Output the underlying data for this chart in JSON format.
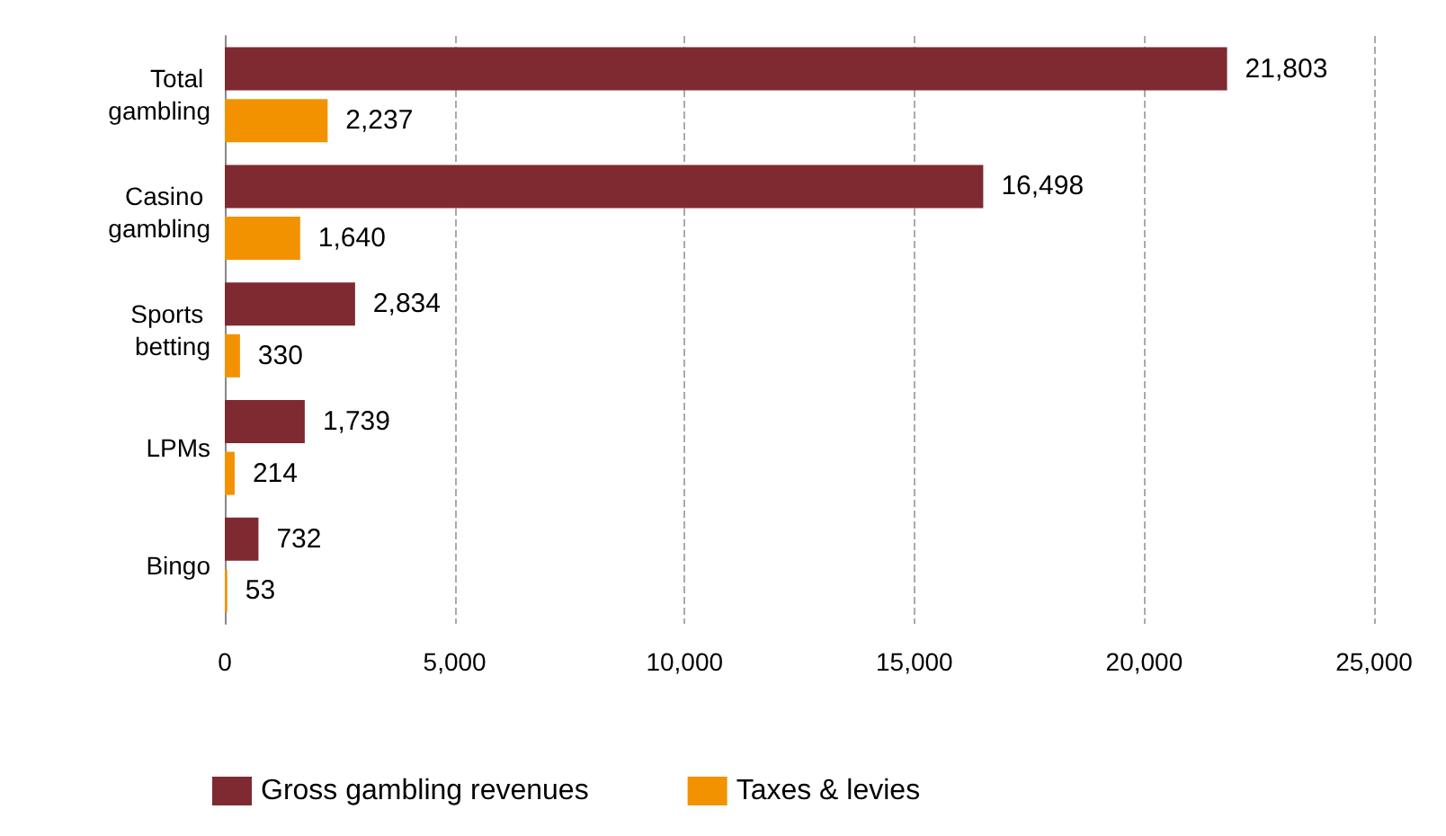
{
  "chart_data": {
    "type": "bar",
    "orientation": "horizontal",
    "categories": [
      "Total gambling",
      "Casino gambling",
      "Sports betting",
      "LPMs",
      "Bingo"
    ],
    "series": [
      {
        "name": "Gross gambling revenues",
        "color": "#7e2a30",
        "values": [
          21803,
          16498,
          2834,
          1739,
          732
        ],
        "value_labels": [
          "21,803",
          "16,498",
          "2,834",
          "1,739",
          "732"
        ]
      },
      {
        "name": "Taxes & levies",
        "color": "#f39200",
        "values": [
          2237,
          1640,
          330,
          214,
          53
        ],
        "value_labels": [
          "2,237",
          "1,640",
          "330",
          "214",
          "53"
        ]
      }
    ],
    "xlim": [
      0,
      25000
    ],
    "xticks": [
      0,
      {
        "value": 5000,
        "label": "5,000"
      },
      {
        "value": 10000,
        "label": "10,000"
      },
      {
        "value": 15000,
        "label": "15,000"
      },
      {
        "value": 20000,
        "label": "20,000"
      },
      {
        "value": 25000,
        "label": "25,000"
      }
    ],
    "grid": "x",
    "legend": "bottom"
  }
}
